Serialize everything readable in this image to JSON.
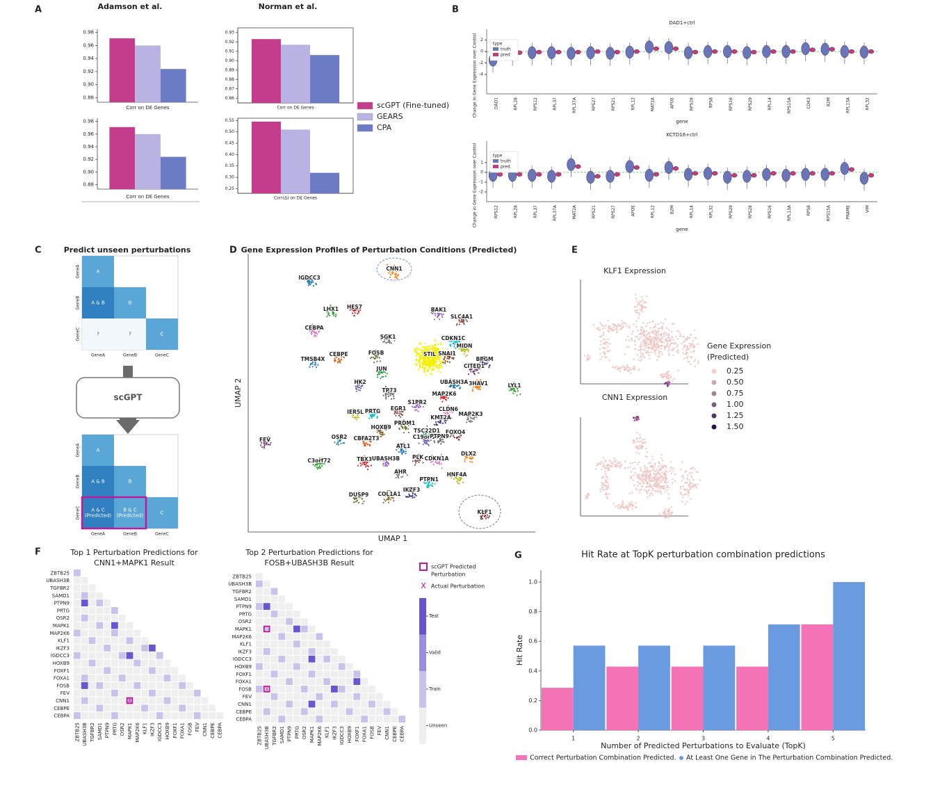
{
  "panel_letters": [
    "A",
    "B",
    "C",
    "D",
    "E",
    "F",
    "G"
  ],
  "panel_a": {
    "titles": [
      "Adamson et al.",
      "Norman et al."
    ],
    "legend": [
      {
        "name": "scGPT (Fine-tuned)",
        "color": "#c43c8c"
      },
      {
        "name": "GEARS",
        "color": "#b9b3e3"
      },
      {
        "name": "CPA",
        "color": "#6c7cc4"
      }
    ]
  },
  "chart_data": [
    {
      "type": "bar",
      "xlabel": "Corr on DE Genes",
      "values": [
        0.971,
        0.96,
        0.924
      ],
      "colors": [
        "#c43c8c",
        "#b9b3e3",
        "#6c7cc4"
      ],
      "ylim": [
        0.873,
        0.985
      ],
      "yticks": [
        0.88,
        {
          "value": 0.9,
          "label": "0.90"
        },
        0.92,
        0.94,
        0.96,
        0.98
      ]
    },
    {
      "type": "bar",
      "xlabel": "Corr on DE Genes",
      "values": [
        0.971,
        0.96,
        0.924
      ],
      "colors": [
        "#c43c8c",
        "#b9b3e3",
        "#6c7cc4"
      ],
      "ylim": [
        0.873,
        0.985
      ],
      "yticks": [
        0.88,
        {
          "value": 0.9,
          "label": "0.90"
        },
        0.92,
        0.94,
        0.96,
        0.98
      ]
    },
    {
      "type": "bar",
      "xlabel": "Corr on DE Genes",
      "values": [
        0.923,
        0.917,
        0.906
      ],
      "colors": [
        "#c43c8c",
        "#b9b3e3",
        "#6c7cc4"
      ],
      "ylim": [
        0.855,
        0.935
      ],
      "yticks": [
        0.86,
        0.87,
        0.88,
        0.89,
        {
          "value": 0.9,
          "label": "0.90"
        },
        0.91,
        0.92,
        0.93
      ]
    },
    {
      "type": "bar",
      "xlabel": "Corr(Δ) on DE Genes",
      "values": [
        0.545,
        0.51,
        0.32
      ],
      "colors": [
        "#c43c8c",
        "#b9b3e3",
        "#6c7cc4"
      ],
      "ylim": [
        0.23,
        0.56
      ],
      "yticks": [
        0.25,
        {
          "value": 0.3,
          "label": "0.30"
        },
        0.35,
        {
          "value": 0.4,
          "label": "0.40"
        },
        0.45,
        {
          "value": 0.5,
          "label": "0.50"
        },
        0.55
      ]
    },
    {
      "type": "violin",
      "title": "DAD1+ctrl",
      "xlabel": "gene",
      "ylabel": "Change in Gene Expression over Control",
      "legend_title": "type",
      "categories": [
        "DAD1",
        "RPL28",
        "RPS12",
        "RPL37",
        "RPL37A",
        "RPS27",
        "RPS21",
        "RPL12",
        "MAT2A",
        "APOE",
        "RPS28",
        "RPS8",
        "RPS16",
        "RPS29",
        "RPL14",
        "RPS15A",
        "CDK3",
        "B2M",
        "RPL13A",
        "RPL32"
      ],
      "series": [
        {
          "name": "truth",
          "color": "#6a74b8",
          "values": [
            -1.5,
            -0.3,
            -0.2,
            -0.2,
            -0.3,
            -0.2,
            -0.3,
            -0.1,
            0.8,
            0.7,
            -0.2,
            0,
            0,
            -0.2,
            0,
            0,
            0.5,
            0.4,
            0,
            -0.1
          ]
        },
        {
          "name": "pred",
          "color": "#c23c7e",
          "values": [
            -0.6,
            -0.2,
            -0.1,
            -0.1,
            -0.1,
            0,
            -0.1,
            0,
            0.5,
            0.5,
            -0.1,
            0,
            0,
            -0.1,
            0,
            0,
            0.3,
            0.4,
            0,
            0
          ]
        }
      ],
      "ylim": [
        -7.4,
        3.9
      ],
      "yticks": [
        -4,
        -2,
        0,
        2
      ]
    },
    {
      "type": "violin",
      "title": "KCTD16+ctrl",
      "xlabel": "gene",
      "ylabel": "Change in Gene Expression over Control",
      "legend_title": "type",
      "categories": [
        "RPS12",
        "RPL28",
        "RPL37",
        "RPL37A",
        "MAT2A",
        "RPS21",
        "RPS27",
        "APOE",
        "RPL12",
        "B2M",
        "RPL14",
        "RPL32",
        "RPS29",
        "RPS28",
        "RPS16",
        "RPL13A",
        "RPS8",
        "RPS15A",
        "PRAME",
        "VIM"
      ],
      "series": [
        {
          "name": "truth",
          "color": "#6a74b8",
          "values": [
            -0.3,
            -0.3,
            -0.3,
            -0.4,
            0.8,
            -0.5,
            -0.4,
            0.6,
            -0.3,
            0.5,
            -0.2,
            -0.1,
            -0.5,
            -0.4,
            -0.2,
            -0.3,
            -0.2,
            -0.2,
            0.4,
            -0.6
          ]
        },
        {
          "name": "pred",
          "color": "#c23c7e",
          "values": [
            -0.2,
            -0.2,
            -0.2,
            -0.2,
            0.6,
            -0.4,
            -0.2,
            0.5,
            -0.2,
            0.4,
            -0.1,
            -0.1,
            -0.3,
            -0.3,
            -0.1,
            -0.1,
            -0.1,
            -0.1,
            0.3,
            -0.3
          ]
        }
      ],
      "ylim": [
        -3,
        3.2
      ],
      "yticks": [
        -2,
        -1,
        0,
        1
      ]
    },
    {
      "type": "bar",
      "title": "Hit Rate at TopK perturbation combination predictions",
      "xlabel": "Number of Predicted Perturbations to Evaluate (TopK)",
      "ylabel": "Hit Rate",
      "categories": [
        "1",
        "2",
        "3",
        "4",
        "5"
      ],
      "series": [
        {
          "name": "Correct Perturbation Combination Predicted.",
          "color": "#f472b6",
          "values": [
            0.286,
            0.429,
            0.429,
            0.429,
            0.714
          ]
        },
        {
          "name": "At Least One Gene in The Perturbation Combination Predicted.",
          "color": "#6a9be0",
          "values": [
            0.571,
            0.571,
            0.571,
            0.714,
            1.0
          ]
        }
      ],
      "ylim": [
        0,
        1.08
      ],
      "yticks": [
        {
          "value": 0,
          "label": "0.0"
        },
        0.2,
        0.4,
        0.6,
        0.8,
        {
          "value": 1,
          "label": "1.0"
        }
      ]
    }
  ],
  "panel_c": {
    "title": "Predict unseen perturbations",
    "genes": [
      "GeneA",
      "GeneB",
      "GeneC"
    ],
    "cells": [
      "A",
      "A & B",
      "B",
      "?",
      "?",
      "C"
    ],
    "model": "scGPT",
    "predicted_cells": [
      [
        "A & C",
        "(Predicted)"
      ],
      [
        "B & C",
        "(Predicted)"
      ]
    ]
  },
  "panel_d": {
    "title": "Gene Expression Profiles of Perturbation Conditions (Predicted)",
    "xlabel": "UMAP 1",
    "ylabel": "UMAP 2",
    "clusters": [
      "IGDCC3",
      "CNN1",
      "LHX1",
      "HES7",
      "BAK1",
      "SLC4A1",
      "CEBPA",
      "SGK1",
      "MIDN",
      "CDKN1C",
      "BPGM",
      "FOSB",
      "STIL",
      "SNAI1",
      "CITED1",
      "TMSB4X",
      "CEBPE",
      "JUN",
      "HK2",
      "TP73",
      "UBASH3A",
      "3HAV1",
      "LYL1",
      "MAP2K6",
      "S1PR2",
      "EGR1",
      "CLDN6",
      "MAP2K3",
      "IER5L",
      "PRTG",
      "KMT2A",
      "PRDM1",
      "HOXB9",
      "FOXO4",
      "FEV",
      "OSR2",
      "CBFA2T3",
      "TSC22D1",
      "C19orf26",
      "PTPN9",
      "ATL1",
      "DLX2",
      "C3orf72",
      "TBX3",
      "UBASH3B",
      "PLK",
      "CDKN1A",
      "AHR",
      "HNF4A",
      "PTPN1",
      "IKZF3",
      "DUSP9",
      "COL1A1",
      "KLF1"
    ]
  },
  "panel_e": {
    "titles": [
      "KLF1 Expression",
      "CNN1 Expression"
    ],
    "legend_title": [
      "Gene Expression",
      "(Predicted)"
    ],
    "legend_values": [
      0.25,
      {
        "value": 0.5,
        "label": "0.50"
      },
      0.75,
      {
        "value": 1,
        "label": "1.00"
      },
      1.25,
      {
        "value": 1.5,
        "label": "1.50"
      }
    ]
  },
  "panel_f": {
    "titles": [
      [
        "Top 1 Perturbation Predictions for",
        "CNN1+MAPK1 Result"
      ],
      [
        "Top 2 Perturbation Predictions for",
        "FOSB+UBASH3B Result"
      ]
    ],
    "genes": [
      "ZBTB25",
      "UBASH3B",
      "TGFBR2",
      "SAMD1",
      "PTPN9",
      "PRTG",
      "OSR2",
      "MAPK1",
      "MAP2K6",
      "KLF1",
      "IKZF3",
      "IGDCC3",
      "HOXB9",
      "FOXF1",
      "FOXA1",
      "FOSB",
      "FEV",
      "CNN1",
      "CEBPE",
      "CEBPA"
    ],
    "legend": {
      "predicted": [
        "scGPT Predicted",
        "Perturbation"
      ],
      "actual_symbol": "X",
      "actual": "Actual Perturbation"
    },
    "colorbar": [
      "Test",
      "Valid",
      "Train",
      "Unseen"
    ]
  }
}
